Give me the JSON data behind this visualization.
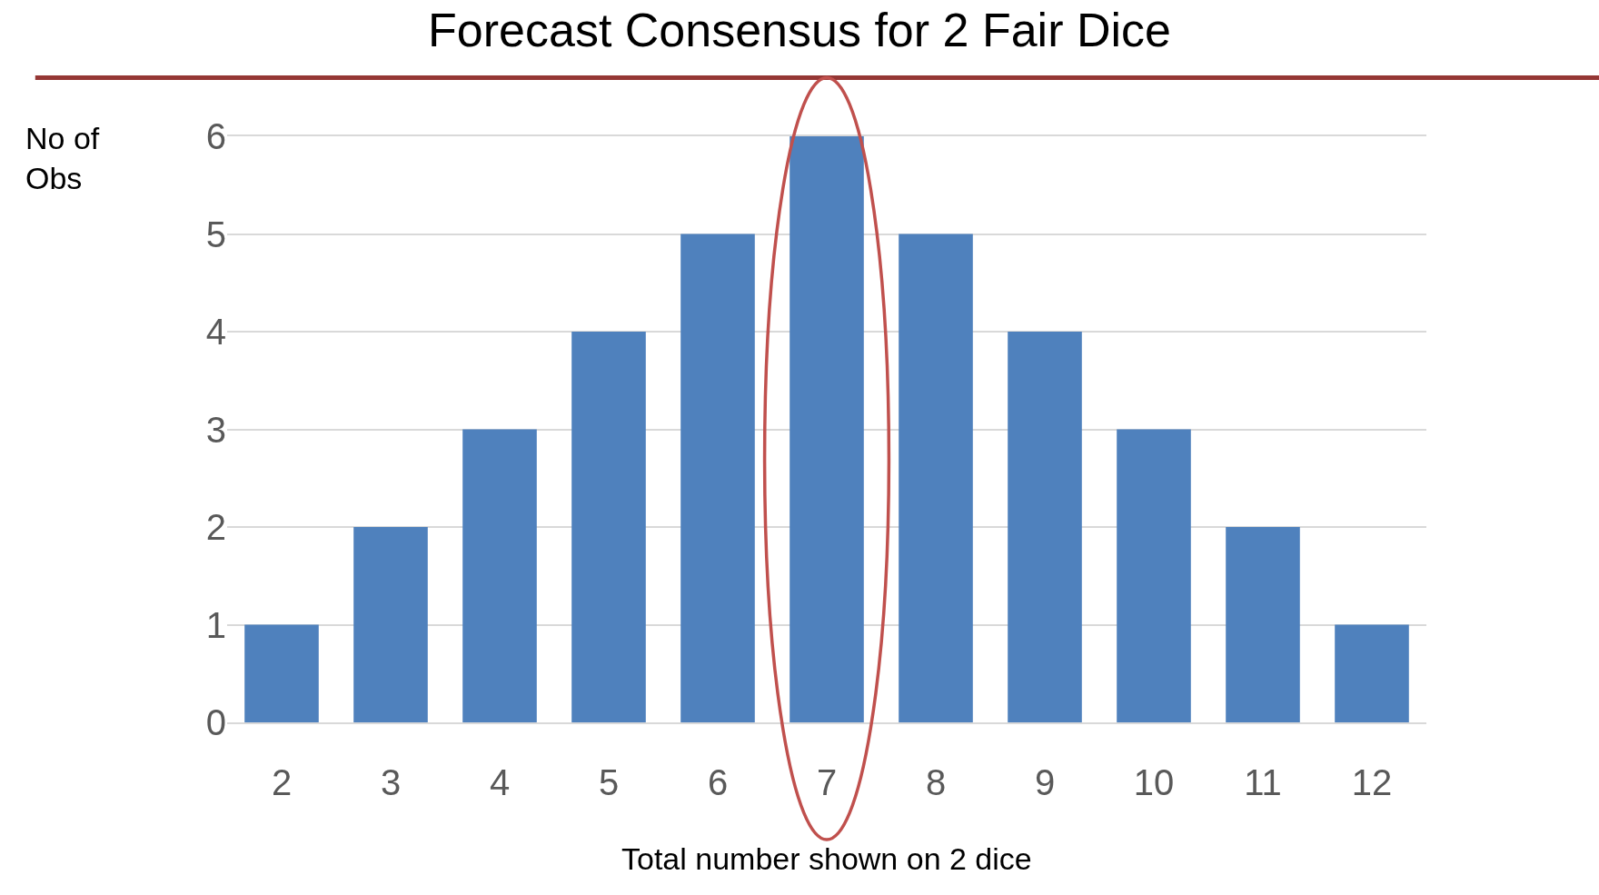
{
  "chart_data": {
    "type": "bar",
    "title": "Forecast Consensus for 2 Fair Dice",
    "xlabel": "Total number shown on 2 dice",
    "ylabel": "No of\nObs",
    "categories": [
      "2",
      "3",
      "4",
      "5",
      "6",
      "7",
      "8",
      "9",
      "10",
      "11",
      "12"
    ],
    "values": [
      1,
      2,
      3,
      4,
      5,
      6,
      5,
      4,
      3,
      2,
      1
    ],
    "color": "#4f81bd",
    "ylim": [
      0,
      6
    ],
    "yticks": [
      0,
      1,
      2,
      3,
      4,
      5,
      6
    ],
    "grid": "y"
  }
}
